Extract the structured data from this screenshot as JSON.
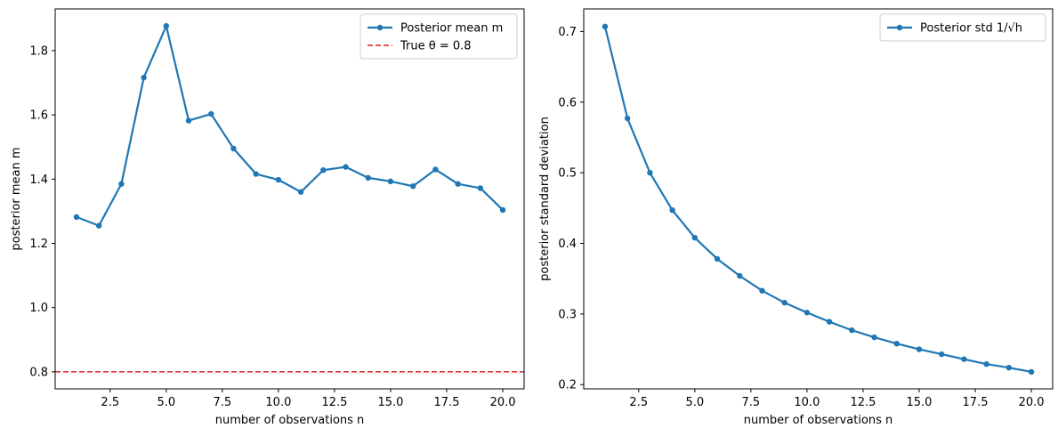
{
  "chart_data": [
    {
      "type": "line",
      "xlabel": "number of observations n",
      "ylabel": "posterior mean m",
      "xlim": [
        0.05,
        20.95
      ],
      "ylim": [
        0.747,
        1.93
      ],
      "x_ticks": [
        2.5,
        5.0,
        7.5,
        10.0,
        12.5,
        15.0,
        17.5,
        20.0
      ],
      "x_tick_labels": [
        "2.5",
        "5.0",
        "7.5",
        "10.0",
        "12.5",
        "15.0",
        "17.5",
        "20.0"
      ],
      "y_ticks": [
        0.8,
        1.0,
        1.2,
        1.4,
        1.6,
        1.8
      ],
      "y_tick_labels": [
        "0.8",
        "1.0",
        "1.2",
        "1.4",
        "1.6",
        "1.8"
      ],
      "grid": false,
      "legend_position": "top-right",
      "series": [
        {
          "name": "Posterior mean m",
          "color": "#1f77b4",
          "style": "solid-with-markers",
          "x": [
            1,
            2,
            3,
            4,
            5,
            6,
            7,
            8,
            9,
            10,
            11,
            12,
            13,
            14,
            15,
            16,
            17,
            18,
            19,
            20
          ],
          "values": [
            1.282,
            1.255,
            1.385,
            1.716,
            1.877,
            1.582,
            1.603,
            1.495,
            1.416,
            1.398,
            1.36,
            1.428,
            1.438,
            1.404,
            1.393,
            1.378,
            1.43,
            1.385,
            1.372,
            1.304
          ]
        },
        {
          "name": "True θ = 0.8",
          "color": "#d62728",
          "style": "dashed-horizontal",
          "y": 0.8
        }
      ]
    },
    {
      "type": "line",
      "xlabel": "number of observations n",
      "ylabel": "posterior standard deviation",
      "xlim": [
        0.05,
        20.95
      ],
      "ylim": [
        0.194,
        0.732
      ],
      "x_ticks": [
        2.5,
        5.0,
        7.5,
        10.0,
        12.5,
        15.0,
        17.5,
        20.0
      ],
      "x_tick_labels": [
        "2.5",
        "5.0",
        "7.5",
        "10.0",
        "12.5",
        "15.0",
        "17.5",
        "20.0"
      ],
      "y_ticks": [
        0.2,
        0.3,
        0.4,
        0.5,
        0.6,
        0.7
      ],
      "y_tick_labels": [
        "0.2",
        "0.3",
        "0.4",
        "0.5",
        "0.6",
        "0.7"
      ],
      "grid": false,
      "legend_position": "top-right",
      "series": [
        {
          "name": "Posterior std 1/√h",
          "color": "#1f77b4",
          "style": "solid-with-markers",
          "x": [
            1,
            2,
            3,
            4,
            5,
            6,
            7,
            8,
            9,
            10,
            11,
            12,
            13,
            14,
            15,
            16,
            17,
            18,
            19,
            20
          ],
          "values": [
            0.707,
            0.577,
            0.5,
            0.447,
            0.408,
            0.378,
            0.354,
            0.333,
            0.316,
            0.302,
            0.289,
            0.277,
            0.267,
            0.258,
            0.25,
            0.243,
            0.236,
            0.229,
            0.224,
            0.218
          ]
        }
      ]
    }
  ]
}
